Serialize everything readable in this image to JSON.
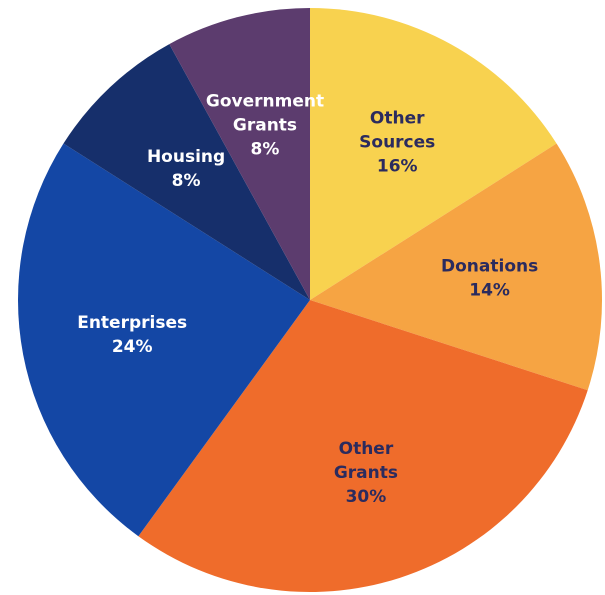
{
  "chart_data": {
    "type": "pie",
    "start_angle_deg": 0,
    "direction": "clockwise",
    "slices": [
      {
        "name": "Other Sources",
        "label_lines": [
          "Other",
          "Sources"
        ],
        "value": 16,
        "value_label": "16%",
        "color": "#F8D24F",
        "text_color": "#2B2B5E"
      },
      {
        "name": "Donations",
        "label_lines": [
          "Donations"
        ],
        "value": 14,
        "value_label": "14%",
        "color": "#F6A443",
        "text_color": "#2B2B5E"
      },
      {
        "name": "Other Grants",
        "label_lines": [
          "Other",
          "Grants"
        ],
        "value": 30,
        "value_label": "30%",
        "color": "#EF6C2B",
        "text_color": "#2B2B5E"
      },
      {
        "name": "Enterprises",
        "label_lines": [
          "Enterprises"
        ],
        "value": 24,
        "value_label": "24%",
        "color": "#1447A5",
        "text_color": "#FFFFFF"
      },
      {
        "name": "Housing",
        "label_lines": [
          "Housing"
        ],
        "value": 8,
        "value_label": "8%",
        "color": "#162F6B",
        "text_color": "#FFFFFF"
      },
      {
        "name": "Government Grants",
        "label_lines": [
          "Government",
          "Grants"
        ],
        "value": 8,
        "value_label": "8%",
        "color": "#5C3C6E",
        "text_color": "#FFFFFF"
      }
    ]
  }
}
